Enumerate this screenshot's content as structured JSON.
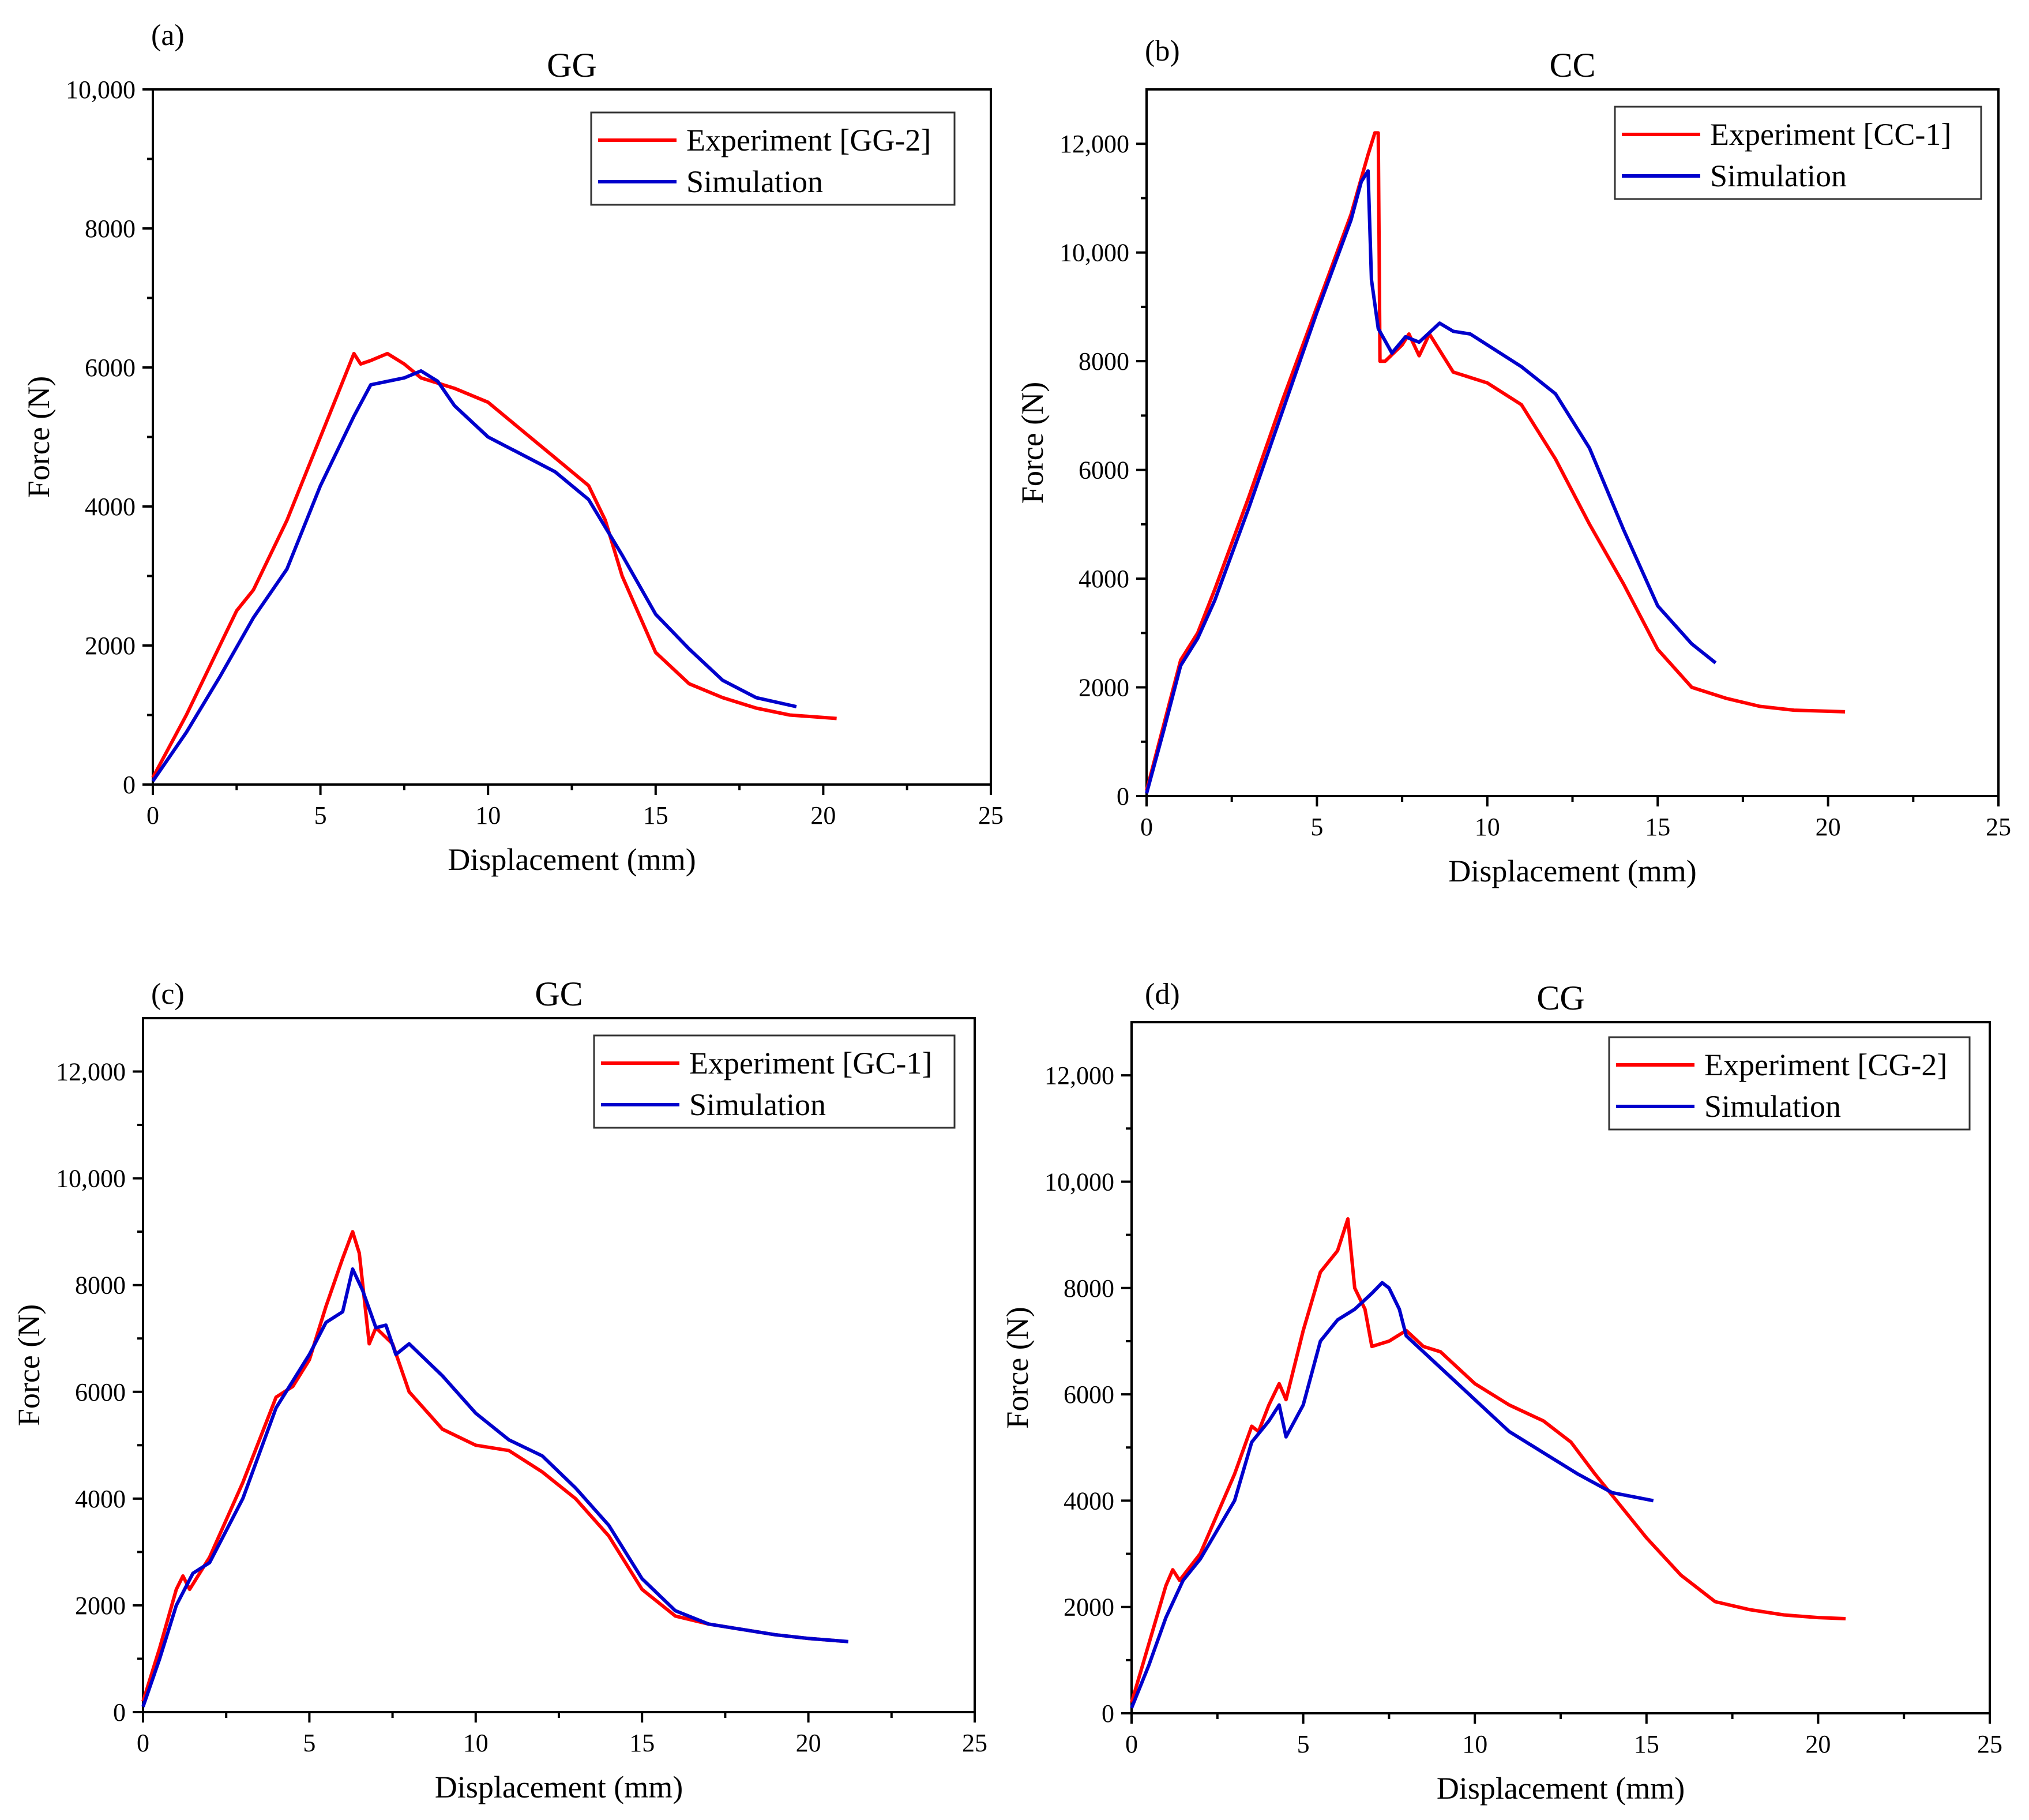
{
  "figure": {
    "panels": [
      {
        "label": "(a)",
        "title": "GG",
        "legend_experiment": "Experiment [GG-2]",
        "legend_simulation": "Simulation"
      },
      {
        "label": "(b)",
        "title": "CC",
        "legend_experiment": "Experiment [CC-1]",
        "legend_simulation": "Simulation"
      },
      {
        "label": "(c)",
        "title": "GC",
        "legend_experiment": "Experiment [GC-1]",
        "legend_simulation": "Simulation"
      },
      {
        "label": "(d)",
        "title": "CG",
        "legend_experiment": "Experiment [CG-2]",
        "legend_simulation": "Simulation"
      }
    ]
  },
  "colors": {
    "experiment": "#ff0000",
    "simulation": "#0000cc"
  },
  "chart_data": [
    {
      "type": "line",
      "panel": "(a)",
      "title": "GG",
      "xlabel": "Displacement (mm)",
      "ylabel": "Force (N)",
      "xlim": [
        0,
        25
      ],
      "ylim": [
        0,
        10000
      ],
      "x_ticks": [
        0,
        5,
        10,
        15,
        20,
        25
      ],
      "x_tick_labels": [
        "0",
        "5",
        "10",
        "15",
        "20",
        "25"
      ],
      "y_ticks": [
        0,
        2000,
        4000,
        6000,
        8000,
        10000
      ],
      "y_tick_labels": [
        "0",
        "2000",
        "4000",
        "6000",
        "8000",
        "10,000"
      ],
      "legend_position": "top-right",
      "series": [
        {
          "name": "Experiment [GG-2]",
          "color": "#ff0000",
          "x": [
            0,
            1,
            2,
            2.5,
            3,
            4,
            5,
            5.5,
            6,
            6.2,
            6.5,
            7,
            7.5,
            8,
            9,
            10,
            11,
            12,
            13,
            13.5,
            14,
            15,
            16,
            17,
            18,
            19,
            20.4
          ],
          "y": [
            100,
            1000,
            2000,
            2500,
            2800,
            3800,
            5000,
            5600,
            6200,
            6050,
            6100,
            6200,
            6050,
            5850,
            5700,
            5500,
            5100,
            4700,
            4300,
            3800,
            3000,
            1900,
            1450,
            1250,
            1100,
            1000,
            950
          ]
        },
        {
          "name": "Simulation",
          "color": "#0000cc",
          "x": [
            0,
            1,
            2,
            3,
            4,
            5,
            6,
            6.5,
            7,
            7.5,
            8,
            8.5,
            9,
            10,
            11,
            12,
            13,
            14,
            15,
            16,
            17,
            18,
            19.2
          ],
          "y": [
            50,
            750,
            1550,
            2400,
            3100,
            4300,
            5300,
            5750,
            5800,
            5850,
            5950,
            5800,
            5450,
            5000,
            4750,
            4500,
            4100,
            3300,
            2450,
            1950,
            1500,
            1250,
            1120
          ]
        }
      ]
    },
    {
      "type": "line",
      "panel": "(b)",
      "title": "CC",
      "xlabel": "Displacement (mm)",
      "ylabel": "Force (N)",
      "xlim": [
        0,
        25
      ],
      "ylim": [
        0,
        13000
      ],
      "x_ticks": [
        0,
        5,
        10,
        15,
        20,
        25
      ],
      "x_tick_labels": [
        "0",
        "5",
        "10",
        "15",
        "20",
        "25"
      ],
      "y_ticks": [
        0,
        2000,
        4000,
        6000,
        8000,
        10000,
        12000
      ],
      "y_tick_labels": [
        "0",
        "2000",
        "4000",
        "6000",
        "8000",
        "10,000",
        "12,000"
      ],
      "legend_position": "top-right",
      "series": [
        {
          "name": "Experiment [CC-1]",
          "color": "#ff0000",
          "x": [
            0,
            0.5,
            1,
            1.5,
            2,
            3,
            4,
            5,
            6,
            6.5,
            6.7,
            6.8,
            6.85,
            7,
            7.5,
            7.7,
            8,
            8.3,
            9,
            10,
            11,
            12,
            13,
            14,
            15,
            16,
            17,
            18,
            19,
            20.5
          ],
          "y": [
            100,
            1300,
            2500,
            3000,
            3800,
            5500,
            7300,
            9000,
            10700,
            11800,
            12200,
            12200,
            8000,
            8000,
            8300,
            8500,
            8100,
            8500,
            7800,
            7600,
            7200,
            6200,
            5000,
            3900,
            2700,
            2000,
            1800,
            1650,
            1580,
            1550
          ]
        },
        {
          "name": "Simulation",
          "color": "#0000cc",
          "x": [
            0,
            0.5,
            1,
            1.5,
            2,
            3,
            4,
            5,
            6,
            6.3,
            6.5,
            6.6,
            6.8,
            7.2,
            7.6,
            8,
            8.6,
            9,
            9.5,
            10,
            11,
            12,
            13,
            14,
            15,
            16,
            16.7
          ],
          "y": [
            50,
            1200,
            2400,
            2900,
            3600,
            5300,
            7100,
            8900,
            10600,
            11300,
            11500,
            9500,
            8600,
            8150,
            8450,
            8350,
            8700,
            8550,
            8500,
            8300,
            7900,
            7400,
            6400,
            4900,
            3500,
            2800,
            2450
          ]
        }
      ]
    },
    {
      "type": "line",
      "panel": "(c)",
      "title": "GC",
      "xlabel": "Displacement (mm)",
      "ylabel": "Force (N)",
      "xlim": [
        0,
        25
      ],
      "ylim": [
        0,
        13000
      ],
      "x_ticks": [
        0,
        5,
        10,
        15,
        20,
        25
      ],
      "x_tick_labels": [
        "0",
        "5",
        "10",
        "15",
        "20",
        "25"
      ],
      "y_ticks": [
        0,
        2000,
        4000,
        6000,
        8000,
        10000,
        12000
      ],
      "y_tick_labels": [
        "0",
        "2000",
        "4000",
        "6000",
        "8000",
        "10,000",
        "12,000"
      ],
      "legend_position": "top-right",
      "series": [
        {
          "name": "Experiment [GC-1]",
          "color": "#ff0000",
          "x": [
            0,
            0.5,
            1,
            1.2,
            1.4,
            2,
            3,
            4,
            4.5,
            5,
            5.5,
            6,
            6.3,
            6.5,
            6.8,
            7,
            7.5,
            8,
            9,
            10,
            11,
            12,
            13,
            14,
            15,
            16,
            17,
            18,
            19,
            20,
            21
          ],
          "y": [
            200,
            1200,
            2300,
            2550,
            2300,
            2900,
            4300,
            5900,
            6100,
            6600,
            7600,
            8500,
            9000,
            8600,
            6900,
            7200,
            6900,
            6000,
            5300,
            5000,
            4900,
            4500,
            4000,
            3300,
            2300,
            1800,
            1650,
            1550,
            1450,
            1380,
            1330
          ]
        },
        {
          "name": "Simulation",
          "color": "#0000cc",
          "x": [
            0,
            0.5,
            1,
            1.5,
            2,
            3,
            4,
            5,
            5.5,
            6,
            6.3,
            6.6,
            7,
            7.3,
            7.6,
            8,
            9,
            10,
            11,
            12,
            13,
            14,
            15,
            16,
            17,
            18,
            19,
            20,
            21.2
          ],
          "y": [
            100,
            1000,
            2000,
            2600,
            2800,
            4000,
            5700,
            6700,
            7300,
            7500,
            8300,
            7900,
            7200,
            7250,
            6700,
            6900,
            6300,
            5600,
            5100,
            4800,
            4200,
            3500,
            2500,
            1900,
            1650,
            1550,
            1450,
            1380,
            1320
          ]
        }
      ]
    },
    {
      "type": "line",
      "panel": "(d)",
      "title": "CG",
      "xlabel": "Displacement (mm)",
      "ylabel": "Force (N)",
      "xlim": [
        0,
        25
      ],
      "ylim": [
        0,
        13000
      ],
      "x_ticks": [
        0,
        5,
        10,
        15,
        20,
        25
      ],
      "x_tick_labels": [
        "0",
        "5",
        "10",
        "15",
        "20",
        "25"
      ],
      "y_ticks": [
        0,
        2000,
        4000,
        6000,
        8000,
        10000,
        12000
      ],
      "y_tick_labels": [
        "0",
        "2000",
        "4000",
        "6000",
        "8000",
        "10,000",
        "12,000"
      ],
      "legend_position": "top-right",
      "series": [
        {
          "name": "Experiment [CG-2]",
          "color": "#ff0000",
          "x": [
            0,
            0.5,
            1,
            1.2,
            1.4,
            2,
            3,
            3.5,
            3.7,
            4,
            4.3,
            4.5,
            5,
            5.5,
            6,
            6.3,
            6.5,
            6.8,
            7,
            7.5,
            8,
            8.5,
            9,
            10,
            11,
            12,
            12.8,
            13.5,
            14,
            15,
            16,
            17,
            18,
            19,
            20,
            20.8
          ],
          "y": [
            200,
            1300,
            2400,
            2700,
            2500,
            3000,
            4500,
            5400,
            5300,
            5800,
            6200,
            5900,
            7200,
            8300,
            8700,
            9300,
            8000,
            7600,
            6900,
            7000,
            7200,
            6900,
            6800,
            6200,
            5800,
            5500,
            5100,
            4500,
            4100,
            3300,
            2600,
            2100,
            1950,
            1850,
            1800,
            1780
          ]
        },
        {
          "name": "Simulation",
          "color": "#0000cc",
          "x": [
            0,
            0.5,
            1,
            1.5,
            2,
            3,
            3.5,
            4,
            4.3,
            4.5,
            5,
            5.5,
            6,
            6.5,
            7,
            7.3,
            7.5,
            7.8,
            8,
            9,
            10,
            11,
            12,
            13,
            14,
            15.2
          ],
          "y": [
            100,
            900,
            1800,
            2500,
            2900,
            4000,
            5100,
            5500,
            5800,
            5200,
            5800,
            7000,
            7400,
            7600,
            7900,
            8100,
            8000,
            7600,
            7100,
            6500,
            5900,
            5300,
            4900,
            4500,
            4150,
            4000
          ]
        }
      ]
    }
  ]
}
